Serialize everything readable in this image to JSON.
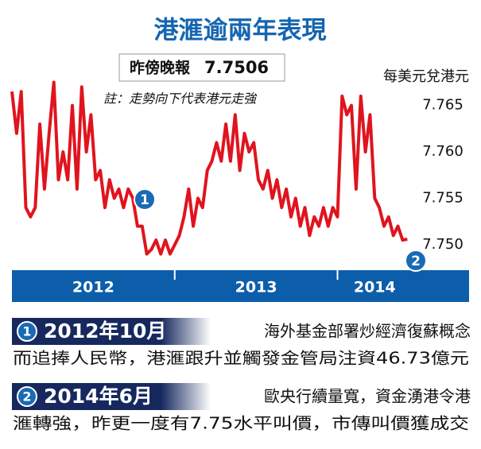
{
  "chart_data": {
    "type": "line",
    "title": "港滙逾兩年表現",
    "latest_label": "昨傍晚報",
    "latest_value": 7.7506,
    "note": "註：走勢向下代表港元走強",
    "y_label": "每美元兌港元",
    "color": "#e0141e",
    "categories": [
      "2012",
      "2013",
      "2014"
    ],
    "values": [
      [
        7.7665,
        7.762,
        7.7665,
        7.754,
        7.753,
        7.754,
        7.763,
        7.756,
        7.762,
        7.7675,
        7.757,
        7.76,
        7.757,
        7.765,
        7.756,
        7.767,
        7.76,
        7.764,
        7.757,
        7.758,
        7.754,
        7.757,
        7.755,
        7.756,
        7.754,
        7.756,
        7.755,
        7.752,
        7.752,
        7.749,
        7.7495,
        7.7505,
        7.749,
        7.7505,
        7.749
      ],
      [
        7.75,
        7.751,
        7.753,
        7.756,
        7.752,
        7.755,
        7.754,
        7.758,
        7.759,
        7.761,
        7.759,
        7.763,
        7.759,
        7.764,
        7.758,
        7.762,
        7.76,
        7.761,
        7.757,
        7.756,
        7.758,
        7.755,
        7.757,
        7.754,
        7.756,
        7.753,
        7.755,
        7.752,
        7.754,
        7.751,
        7.753,
        7.752,
        7.754,
        7.752,
        7.754
      ],
      [
        7.753,
        7.766,
        7.764,
        7.765,
        7.756,
        7.766,
        7.76,
        7.764,
        7.755,
        7.754,
        7.752,
        7.753,
        7.751,
        7.752,
        7.7505,
        7.7506
      ]
    ],
    "ylim": [
      7.747,
      7.769
    ],
    "yticks": [
      {
        "value": 7.75,
        "label": "7.750"
      },
      7.755,
      {
        "value": 7.76,
        "label": "7.760"
      },
      7.765
    ],
    "annotations": [
      "1",
      "2"
    ]
  },
  "events": [
    {
      "badge": "1",
      "date": "2012年10月",
      "lines": [
        "海外基金部署炒經濟復蘇概念",
        "而追捧人民幣，港滙跟升並觸發金管局注資46.73億元"
      ]
    },
    {
      "badge": "2",
      "date": "2014年6月",
      "lines": [
        "歐央行續量寬，資金湧港令港",
        "滙轉強，昨更一度有7.75水平叫價，市傳叫價獲成交"
      ]
    }
  ]
}
